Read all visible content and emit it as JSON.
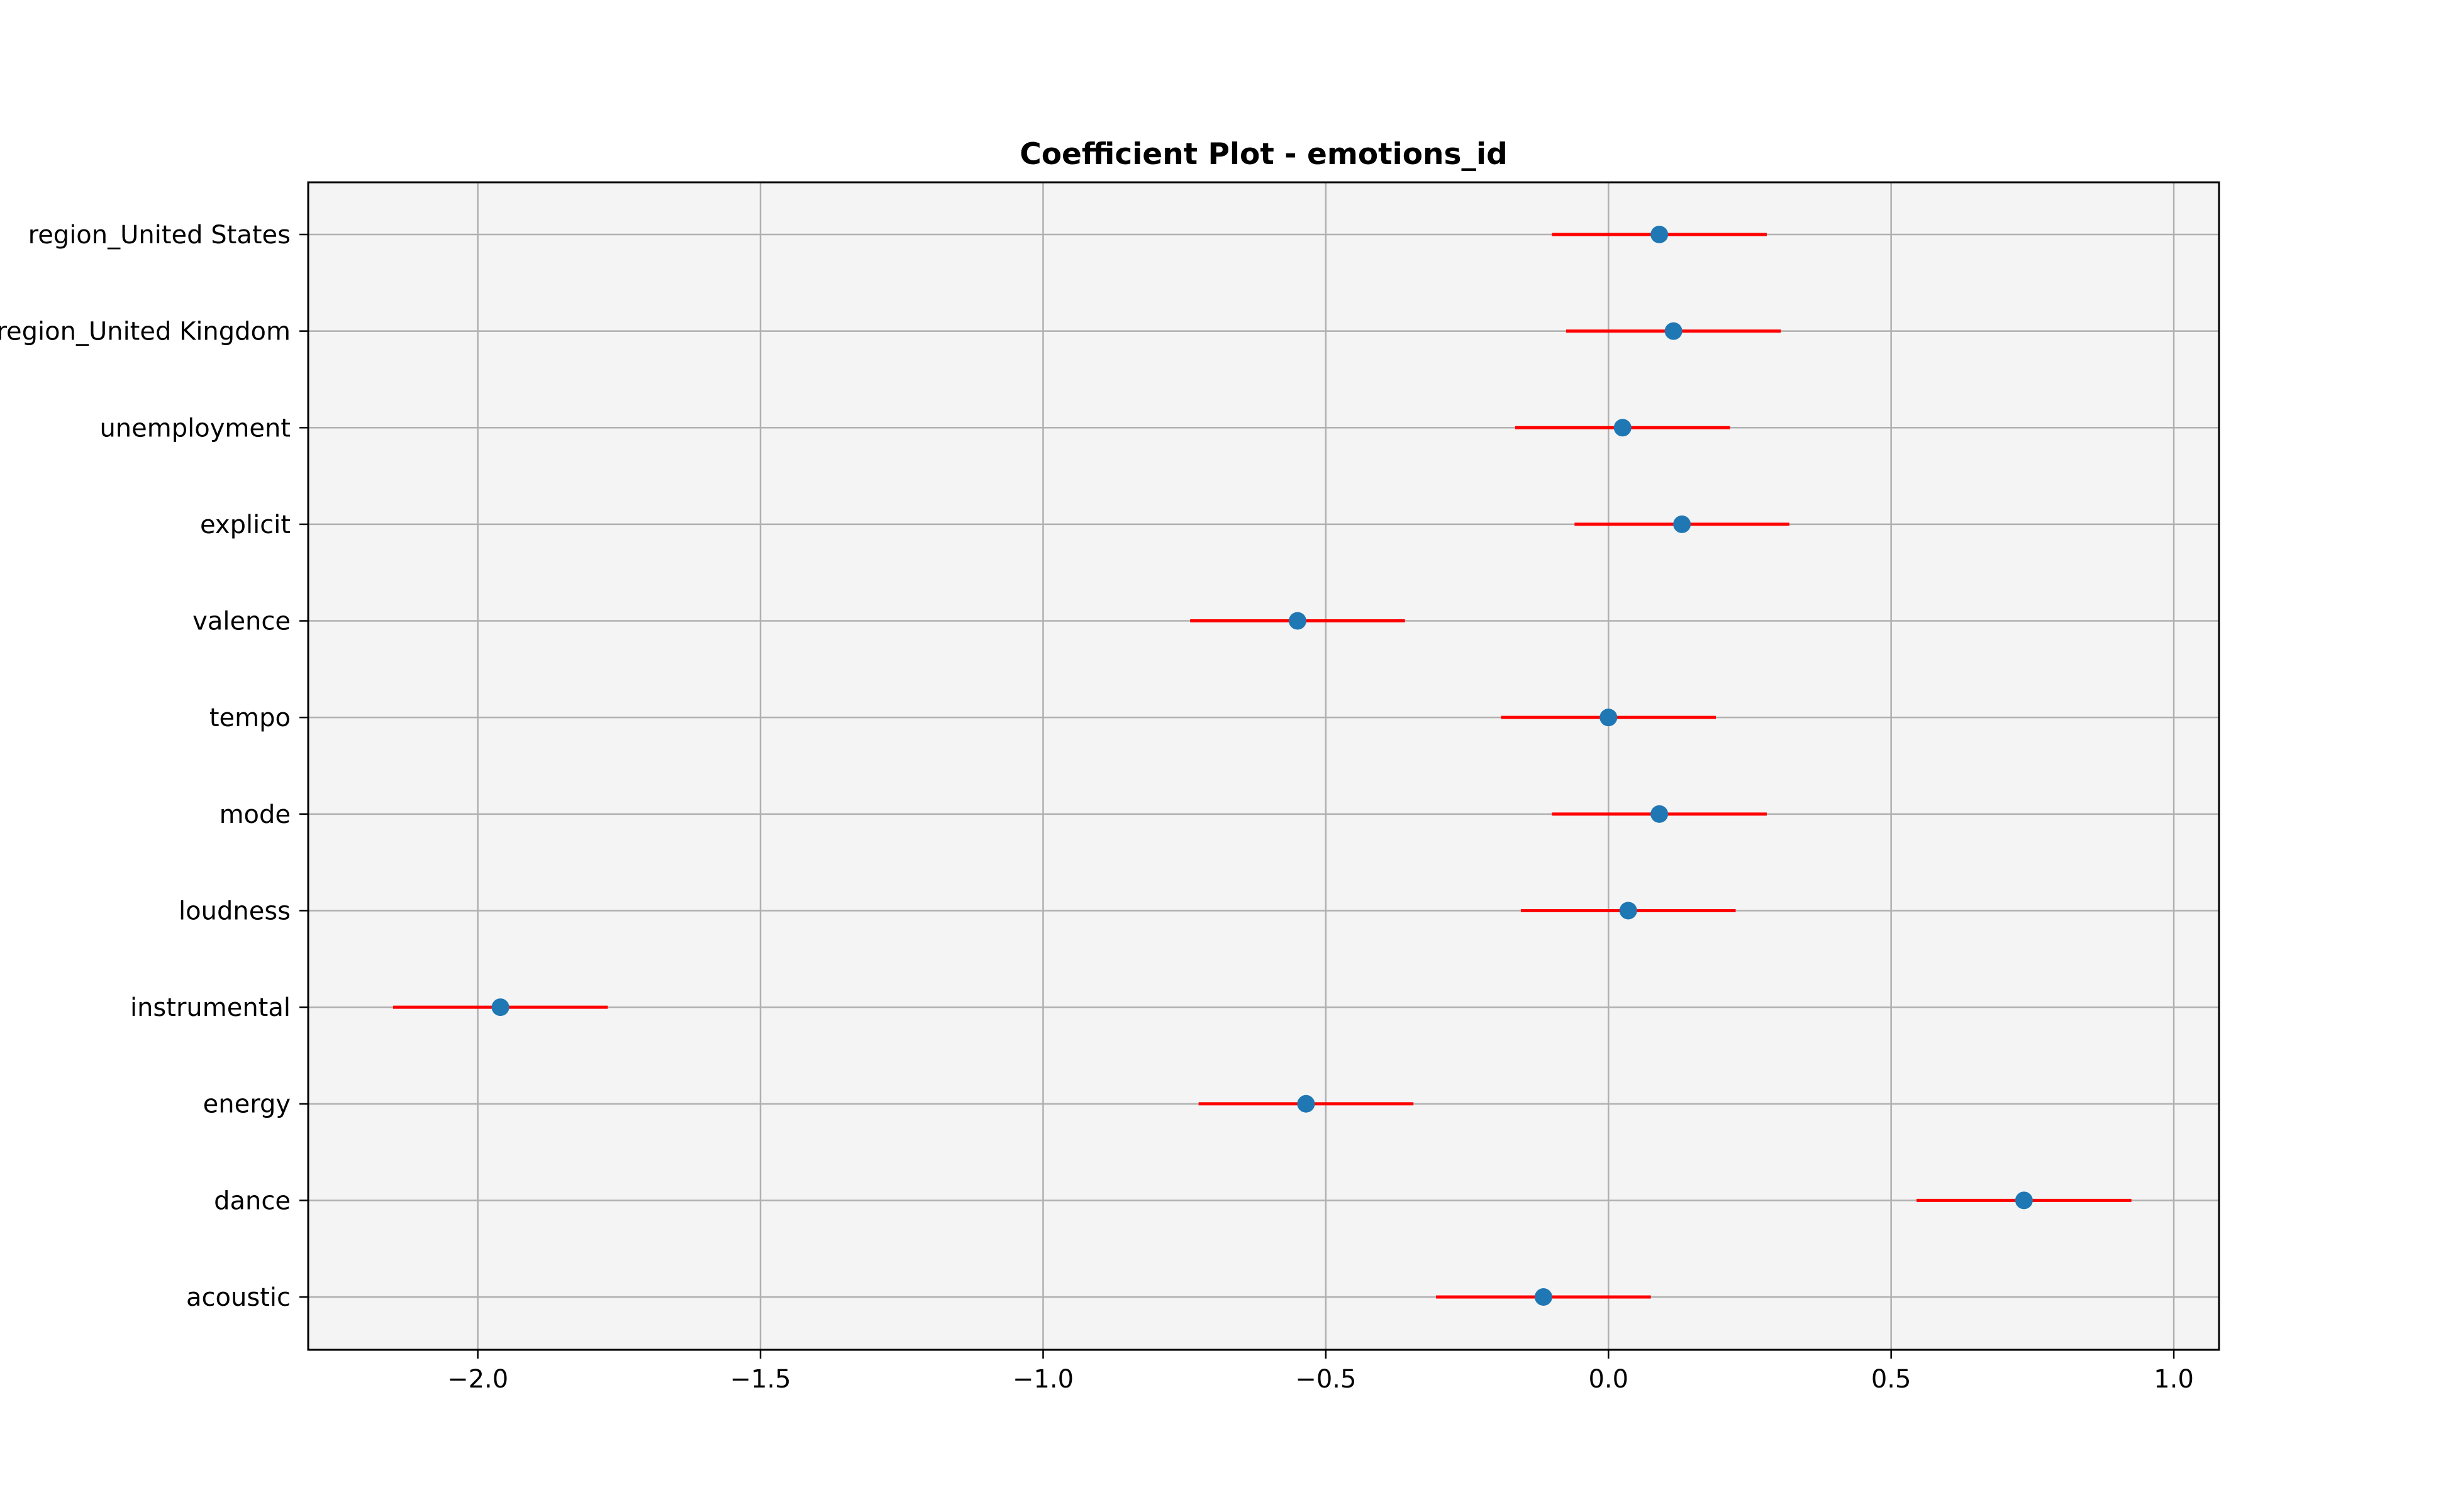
{
  "chart_data": {
    "type": "scatter",
    "subtype": "coefficient-plot-with-confidence-intervals",
    "title": "Coefficient Plot - emotions_id",
    "xlabel": "",
    "ylabel": "",
    "xlim": [
      -2.3,
      1.08
    ],
    "xticks": [
      -2.0,
      -1.5,
      -1.0,
      -0.5,
      0.0,
      0.5,
      1.0
    ],
    "xtick_labels": [
      "−2.0",
      "−1.5",
      "−1.0",
      "−0.5",
      "0.0",
      "0.5",
      "1.0"
    ],
    "grid": true,
    "legend": "none",
    "colors": {
      "point": "#1f77b4",
      "interval": "#ff0000",
      "plot_bg": "#f4f4f4",
      "grid": "#b0b0b0"
    },
    "categories": [
      "region_United States",
      "region_United Kingdom",
      "unemployment",
      "explicit",
      "valence",
      "tempo",
      "mode",
      "loudness",
      "instrumental",
      "energy",
      "dance",
      "acoustic"
    ],
    "coefficients": [
      0.09,
      0.115,
      0.025,
      0.13,
      -0.55,
      0.0,
      0.09,
      0.035,
      -1.96,
      -0.535,
      0.735,
      -0.115
    ],
    "ci_lower": [
      -0.1,
      -0.075,
      -0.165,
      -0.06,
      -0.74,
      -0.19,
      -0.1,
      -0.155,
      -2.15,
      -0.725,
      0.545,
      -0.305
    ],
    "ci_upper": [
      0.28,
      0.305,
      0.215,
      0.32,
      -0.36,
      0.19,
      0.28,
      0.225,
      -1.77,
      -0.345,
      0.925,
      0.075
    ]
  }
}
